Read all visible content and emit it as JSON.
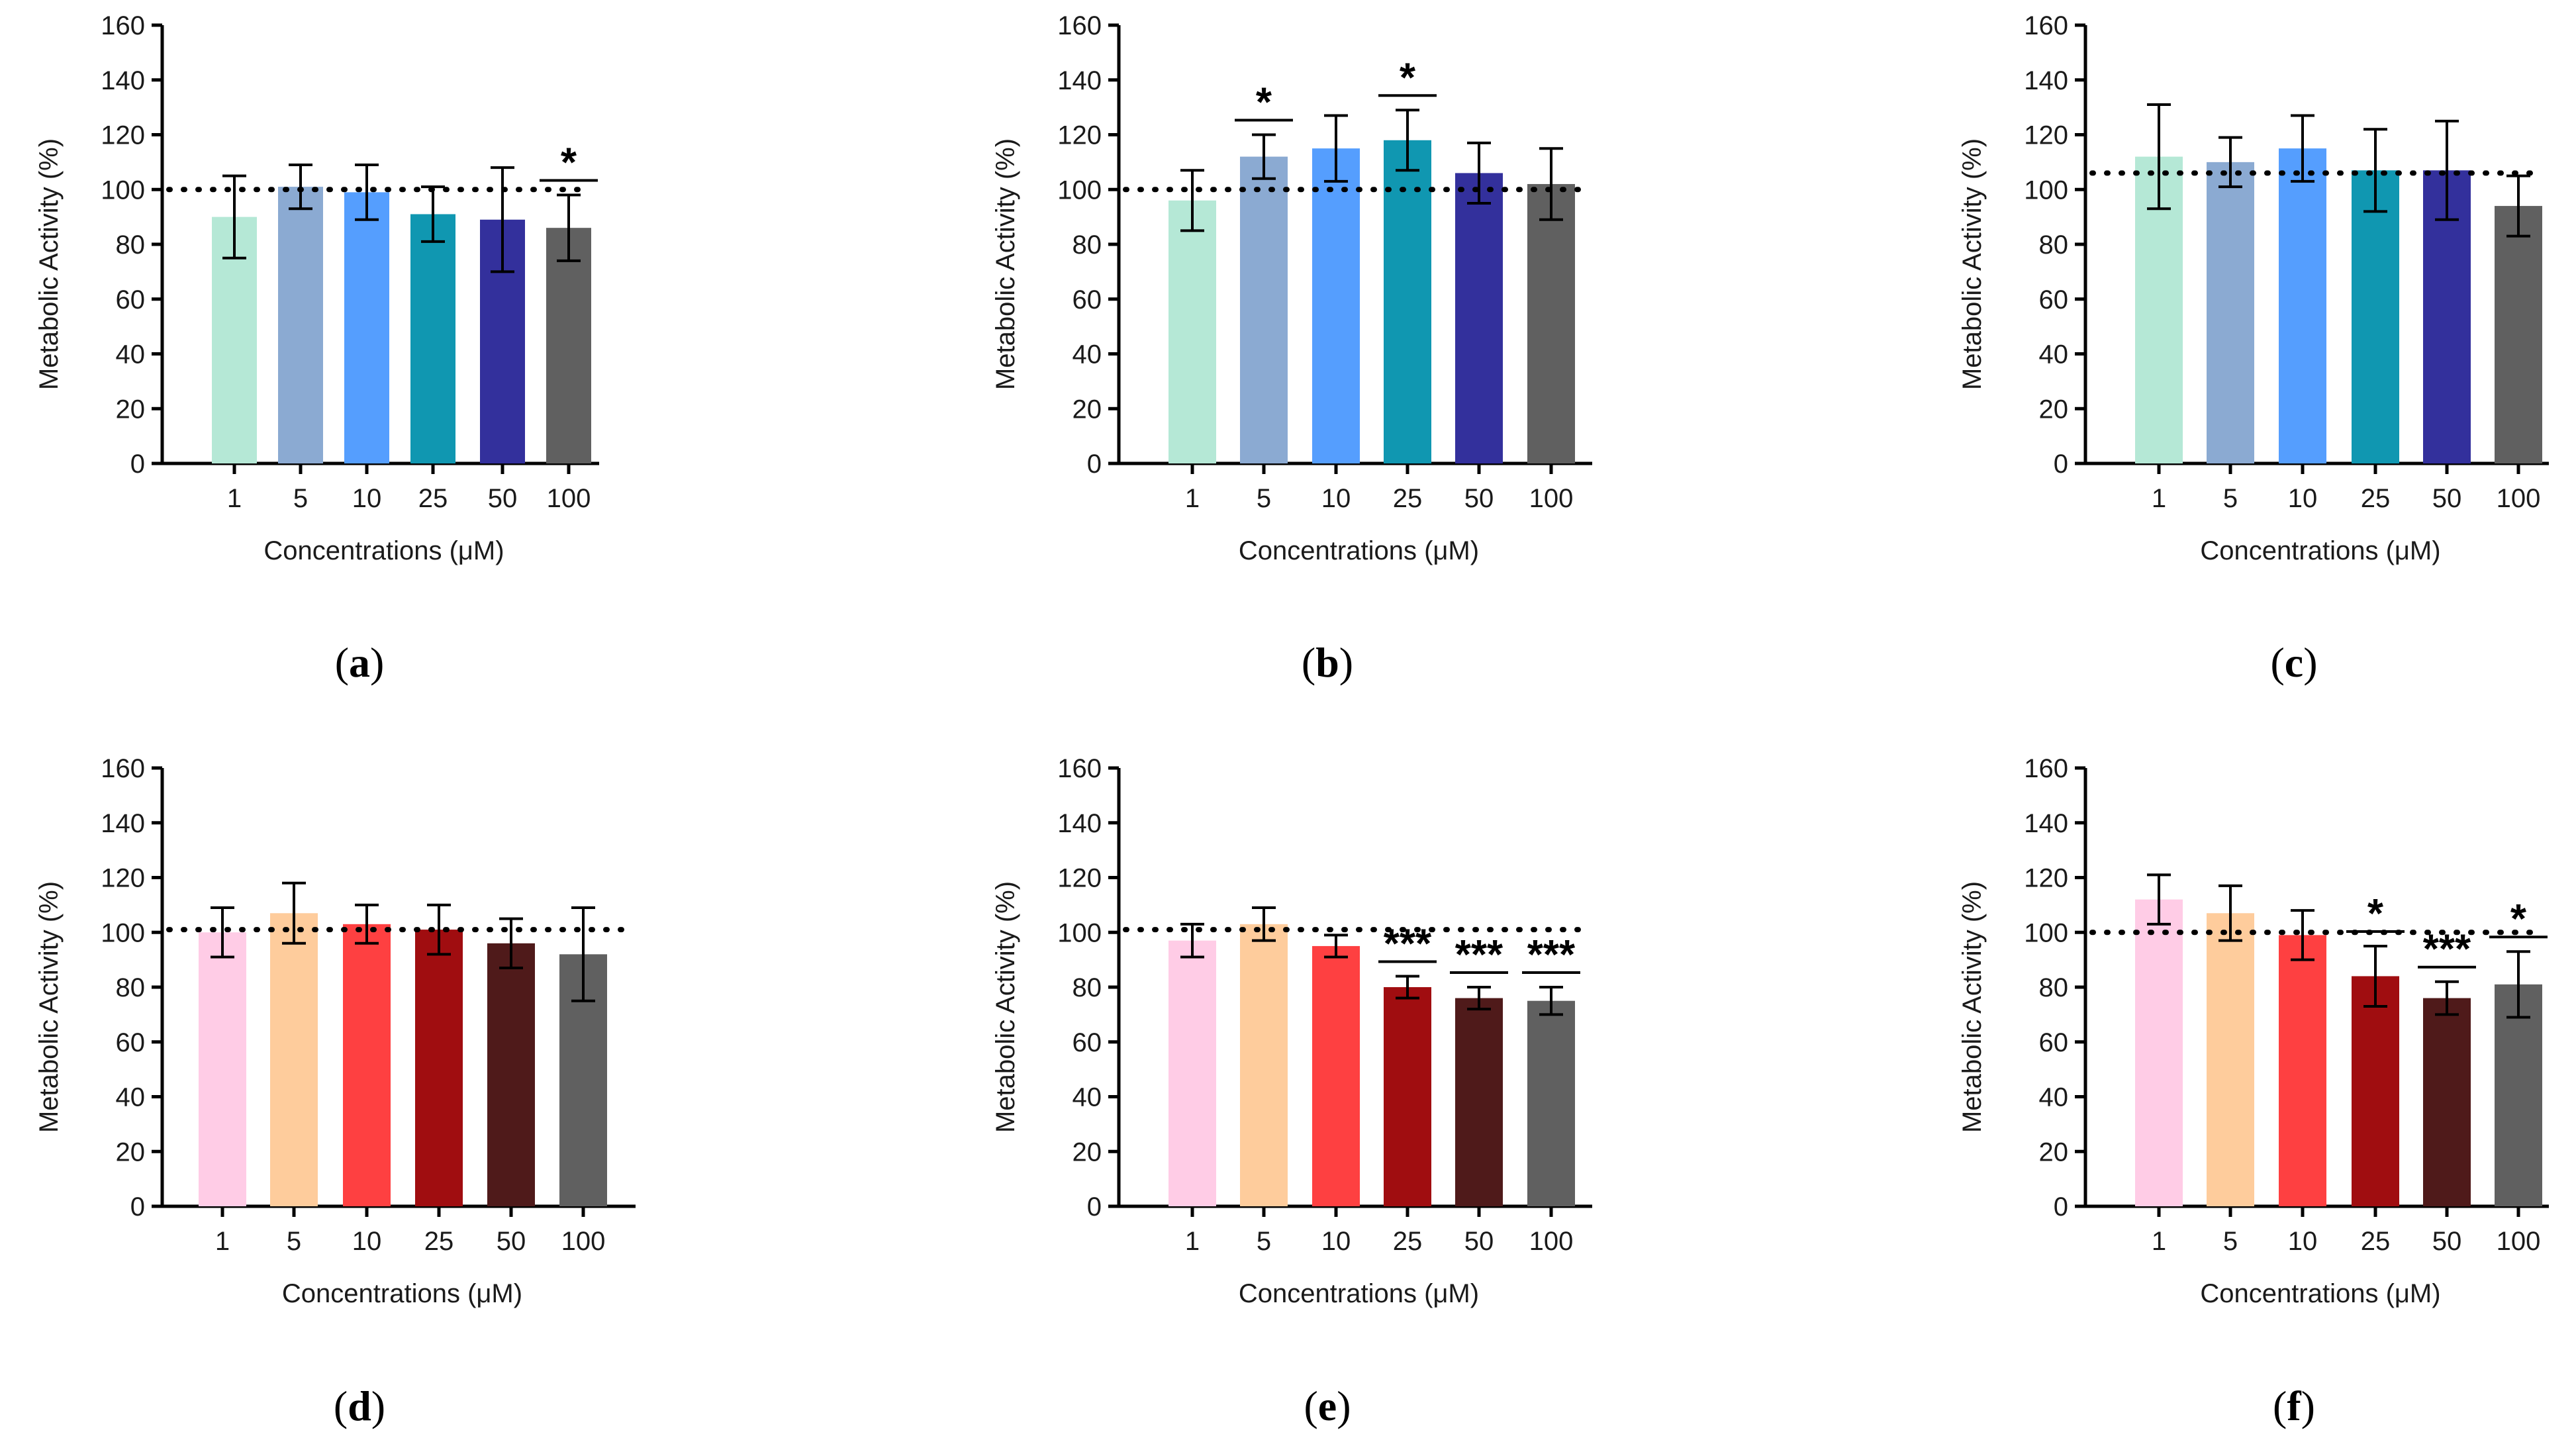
{
  "figure": {
    "panels": [
      "a",
      "b",
      "c",
      "d",
      "e",
      "f"
    ]
  },
  "chart_data": [
    {
      "panel": "a",
      "type": "bar",
      "categories": [
        "1",
        "5",
        "10",
        "25",
        "50",
        "100"
      ],
      "values": [
        90,
        101,
        99,
        91,
        89,
        86
      ],
      "errors": [
        15,
        8,
        10,
        10,
        19,
        12
      ],
      "colors": [
        "#b5e8d6",
        "#8baad2",
        "#559efe",
        "#1097b1",
        "#33309c",
        "#606060"
      ],
      "significance": [
        {
          "index": 5,
          "label": "*"
        }
      ],
      "reference_line": 100,
      "xlabel": "Concentrations (μM)",
      "ylabel": "Metabolic Activity (%)",
      "yticks": [
        "0",
        "20",
        "40",
        "60",
        "80",
        "100",
        "120",
        "140",
        "160"
      ],
      "ylim": [
        0,
        160
      ]
    },
    {
      "panel": "b",
      "type": "bar",
      "categories": [
        "1",
        "5",
        "10",
        "25",
        "50",
        "100"
      ],
      "values": [
        96,
        112,
        115,
        118,
        106,
        102
      ],
      "errors": [
        11,
        8,
        12,
        11,
        11,
        13
      ],
      "colors": [
        "#b5e8d6",
        "#8baad2",
        "#559efe",
        "#1097b1",
        "#33309c",
        "#606060"
      ],
      "significance": [
        {
          "index": 1,
          "label": "*"
        },
        {
          "index": 3,
          "label": "*"
        }
      ],
      "reference_line": 100,
      "xlabel": "Concentrations (μM)",
      "ylabel": "Metabolic Activity (%)",
      "yticks": [
        "0",
        "20",
        "40",
        "60",
        "80",
        "100",
        "120",
        "140",
        "160"
      ],
      "ylim": [
        0,
        160
      ]
    },
    {
      "panel": "c",
      "type": "bar",
      "categories": [
        "1",
        "5",
        "10",
        "25",
        "50",
        "100"
      ],
      "values": [
        112,
        110,
        115,
        107,
        107,
        94
      ],
      "errors": [
        19,
        9,
        12,
        15,
        18,
        11
      ],
      "colors": [
        "#b5e8d6",
        "#8baad2",
        "#559efe",
        "#1097b1",
        "#33309c",
        "#606060"
      ],
      "significance": [],
      "reference_line": 106,
      "xlabel": "Concentrations (μM)",
      "ylabel": "Metabolic Activity (%)",
      "yticks": [
        "0",
        "20",
        "40",
        "60",
        "80",
        "100",
        "120",
        "140",
        "160"
      ],
      "ylim": [
        0,
        160
      ]
    },
    {
      "panel": "d",
      "type": "bar",
      "categories": [
        "1",
        "5",
        "10",
        "25",
        "50",
        "100"
      ],
      "values": [
        100,
        107,
        103,
        101,
        96,
        92
      ],
      "errors": [
        9,
        11,
        7,
        9,
        9,
        17
      ],
      "colors": [
        "#ffcce6",
        "#fecc9c",
        "#fe4041",
        "#a00d10",
        "#4f1a1a",
        "#606060"
      ],
      "significance": [],
      "reference_line": 101,
      "xlabel": "Concentrations (μM)",
      "ylabel": "Metabolic Activity (%)",
      "yticks": [
        "0",
        "20",
        "40",
        "60",
        "80",
        "100",
        "120",
        "140",
        "160"
      ],
      "ylim": [
        0,
        160
      ]
    },
    {
      "panel": "e",
      "type": "bar",
      "categories": [
        "1",
        "5",
        "10",
        "25",
        "50",
        "100"
      ],
      "values": [
        97,
        103,
        95,
        80,
        76,
        75
      ],
      "errors": [
        6,
        6,
        4,
        4,
        4,
        5
      ],
      "colors": [
        "#ffcce6",
        "#fecc9c",
        "#fe4041",
        "#a00d10",
        "#4f1a1a",
        "#606060"
      ],
      "significance": [
        {
          "index": 3,
          "label": "***"
        },
        {
          "index": 4,
          "label": "***"
        },
        {
          "index": 5,
          "label": "***"
        }
      ],
      "reference_line": 101,
      "xlabel": "Concentrations (μM)",
      "ylabel": "Metabolic Activity (%)",
      "yticks": [
        "0",
        "20",
        "40",
        "60",
        "80",
        "100",
        "120",
        "140",
        "160"
      ],
      "ylim": [
        0,
        160
      ]
    },
    {
      "panel": "f",
      "type": "bar",
      "categories": [
        "1",
        "5",
        "10",
        "25",
        "50",
        "100"
      ],
      "values": [
        112,
        107,
        99,
        84,
        76,
        81
      ],
      "errors": [
        9,
        10,
        9,
        11,
        6,
        12
      ],
      "colors": [
        "#ffcce6",
        "#fecc9c",
        "#fe4041",
        "#a00d10",
        "#4f1a1a",
        "#606060"
      ],
      "significance": [
        {
          "index": 3,
          "label": "*"
        },
        {
          "index": 4,
          "label": "***"
        },
        {
          "index": 5,
          "label": "*"
        }
      ],
      "reference_line": 100,
      "xlabel": "Concentrations (μM)",
      "ylabel": "Metabolic Activity (%)",
      "yticks": [
        "0",
        "20",
        "40",
        "60",
        "80",
        "100",
        "120",
        "140",
        "160"
      ],
      "ylim": [
        0,
        160
      ]
    }
  ]
}
